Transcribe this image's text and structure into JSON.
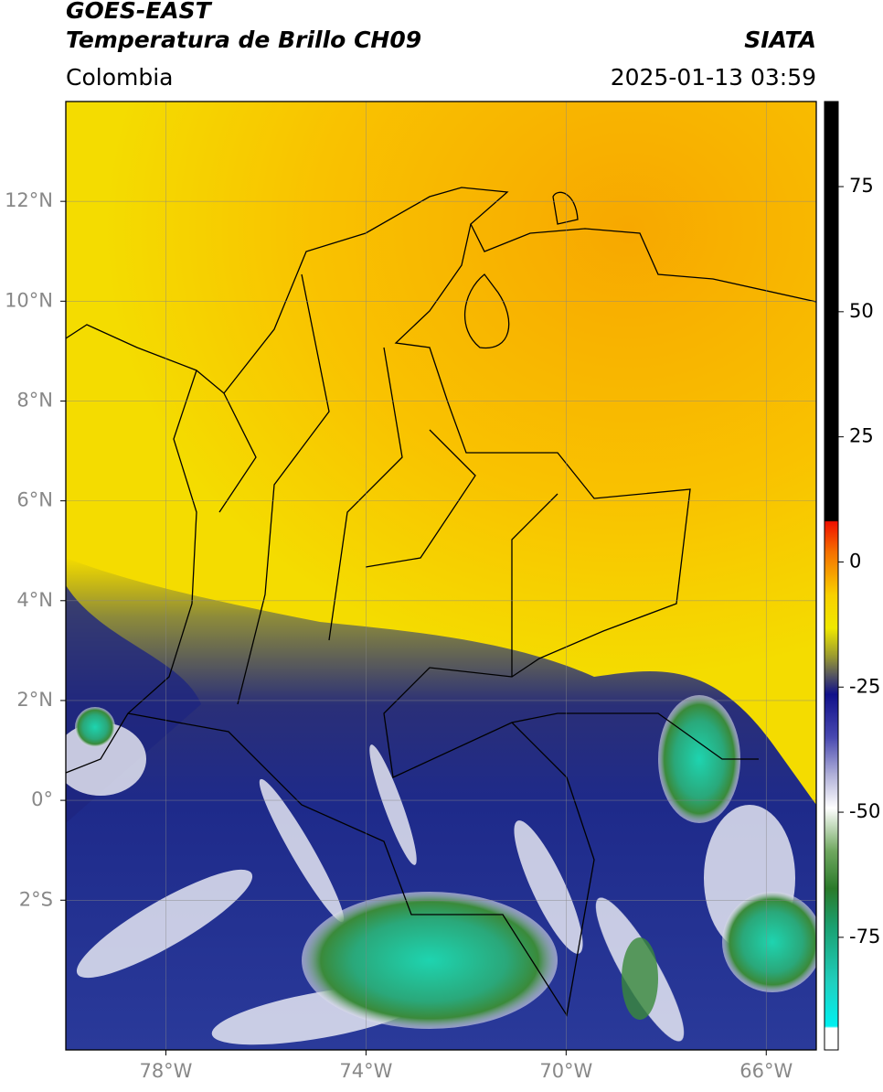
{
  "header": {
    "title": "GOES-EAST",
    "subtitle": "Temperatura de Brillo CH09",
    "source": "SIATA",
    "region": "Colombia",
    "datetime": "2025-01-13 03:59"
  },
  "map": {
    "xlim": [
      -80,
      -65
    ],
    "ylim": [
      -5,
      14
    ],
    "xticks": [
      {
        "value": -78,
        "label": "78°W"
      },
      {
        "value": -74,
        "label": "74°W"
      },
      {
        "value": -70,
        "label": "70°W"
      },
      {
        "value": -66,
        "label": "66°W"
      }
    ],
    "yticks": [
      {
        "value": 12,
        "label": "12°N"
      },
      {
        "value": 10,
        "label": "10°N"
      },
      {
        "value": 8,
        "label": "8°N"
      },
      {
        "value": 6,
        "label": "6°N"
      },
      {
        "value": 4,
        "label": "4°N"
      },
      {
        "value": 2,
        "label": "2°N"
      },
      {
        "value": 0,
        "label": "0°"
      },
      {
        "value": -2,
        "label": "2°S"
      }
    ],
    "grid": true
  },
  "colorbar": {
    "lim": [
      -97.5,
      92
    ],
    "ticks": [
      75,
      50,
      25,
      0,
      -25,
      -50,
      -75
    ]
  }
}
